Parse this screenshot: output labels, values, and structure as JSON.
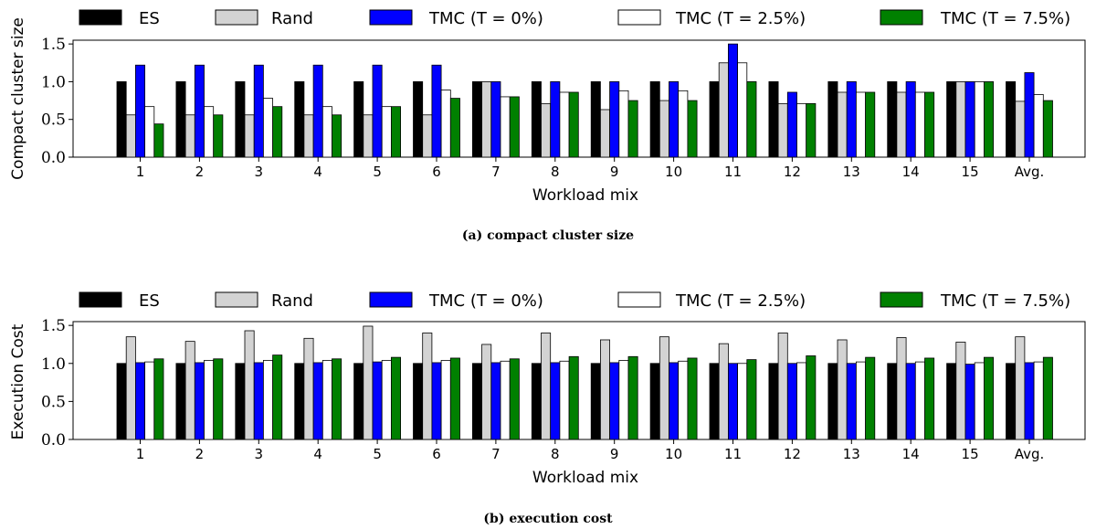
{
  "colors": {
    "ES": "#000000",
    "Rand": "#d3d3d3",
    "TMC (T = 0%)": "#0000ff",
    "TMC (T = 2.5%)": "#ffffff",
    "TMC (T = 7.5%)": "#008000"
  },
  "chart_data": [
    {
      "type": "bar",
      "caption": "(a) compact cluster size",
      "xlabel": "Workload mix",
      "ylabel": "Compact cluster size",
      "ylim": [
        0,
        1.55
      ],
      "yticks": [
        "0.0",
        "0.5",
        "1.0",
        "1.5"
      ],
      "legend_position": "top",
      "categories": [
        "1",
        "2",
        "3",
        "4",
        "5",
        "6",
        "7",
        "8",
        "9",
        "10",
        "11",
        "12",
        "13",
        "14",
        "15",
        "Avg."
      ],
      "series": [
        {
          "name": "ES",
          "values": [
            1.0,
            1.0,
            1.0,
            1.0,
            1.0,
            1.0,
            1.0,
            1.0,
            1.0,
            1.0,
            1.0,
            1.0,
            1.0,
            1.0,
            1.0,
            1.0
          ]
        },
        {
          "name": "Rand",
          "values": [
            0.56,
            0.56,
            0.56,
            0.56,
            0.56,
            0.56,
            1.0,
            0.71,
            0.63,
            0.75,
            1.25,
            0.71,
            0.86,
            0.86,
            1.0,
            0.74
          ]
        },
        {
          "name": "TMC (T = 0%)",
          "values": [
            1.22,
            1.22,
            1.22,
            1.22,
            1.22,
            1.22,
            1.0,
            1.0,
            1.0,
            1.0,
            1.5,
            0.86,
            1.0,
            1.0,
            1.0,
            1.12
          ]
        },
        {
          "name": "TMC (T = 2.5%)",
          "values": [
            0.67,
            0.67,
            0.78,
            0.67,
            0.67,
            0.89,
            0.8,
            0.86,
            0.88,
            0.88,
            1.25,
            0.71,
            0.86,
            0.86,
            1.0,
            0.83
          ]
        },
        {
          "name": "TMC (T = 7.5%)",
          "values": [
            0.44,
            0.56,
            0.67,
            0.56,
            0.67,
            0.78,
            0.8,
            0.86,
            0.75,
            0.75,
            1.0,
            0.71,
            0.86,
            0.86,
            1.0,
            0.75
          ]
        }
      ]
    },
    {
      "type": "bar",
      "caption": "(b) execution cost",
      "xlabel": "Workload mix",
      "ylabel": "Execution Cost",
      "ylim": [
        0,
        1.55
      ],
      "yticks": [
        "0.0",
        "0.5",
        "1.0",
        "1.5"
      ],
      "legend_position": "top",
      "categories": [
        "1",
        "2",
        "3",
        "4",
        "5",
        "6",
        "7",
        "8",
        "9",
        "10",
        "11",
        "12",
        "13",
        "14",
        "15",
        "Avg."
      ],
      "series": [
        {
          "name": "ES",
          "values": [
            1.0,
            1.0,
            1.0,
            1.0,
            1.0,
            1.0,
            1.0,
            1.0,
            1.0,
            1.0,
            1.0,
            1.0,
            1.0,
            1.0,
            1.0,
            1.0
          ]
        },
        {
          "name": "Rand",
          "values": [
            1.35,
            1.29,
            1.43,
            1.33,
            1.49,
            1.4,
            1.25,
            1.4,
            1.31,
            1.35,
            1.26,
            1.4,
            1.31,
            1.34,
            1.28,
            1.35
          ]
        },
        {
          "name": "TMC (T = 0%)",
          "values": [
            1.01,
            1.01,
            1.01,
            1.01,
            1.02,
            1.01,
            1.01,
            1.01,
            1.01,
            1.01,
            1.0,
            1.0,
            1.0,
            1.0,
            0.99,
            1.01
          ]
        },
        {
          "name": "TMC (T = 2.5%)",
          "values": [
            1.02,
            1.04,
            1.04,
            1.04,
            1.04,
            1.04,
            1.03,
            1.03,
            1.04,
            1.03,
            1.0,
            1.01,
            1.02,
            1.02,
            1.01,
            1.02
          ]
        },
        {
          "name": "TMC (T = 7.5%)",
          "values": [
            1.06,
            1.06,
            1.11,
            1.06,
            1.08,
            1.07,
            1.06,
            1.09,
            1.09,
            1.07,
            1.05,
            1.1,
            1.08,
            1.07,
            1.08,
            1.08
          ]
        }
      ]
    }
  ]
}
